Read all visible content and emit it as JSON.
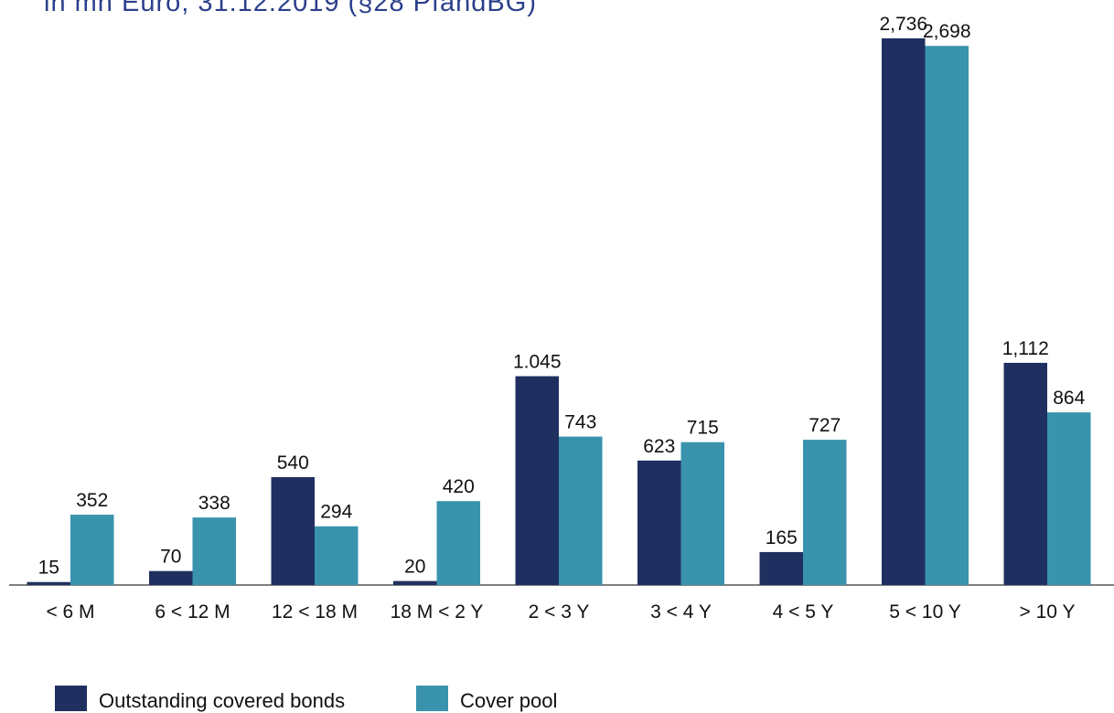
{
  "chart_data": {
    "type": "bar",
    "title": "in mn Euro, 31.12.2019 (§28 PfandBG)",
    "categories": [
      "< 6 M",
      "6 < 12 M",
      "12 < 18 M",
      "18 M < 2 Y",
      "2 < 3 Y",
      "3 < 4 Y",
      "4 < 5 Y",
      "5 < 10 Y",
      "> 10 Y"
    ],
    "series": [
      {
        "name": "Outstanding covered bonds",
        "color": "#1f3060",
        "values": [
          15,
          70,
          540,
          20,
          1045,
          623,
          165,
          2736,
          1112
        ],
        "value_labels": [
          "15",
          "70",
          "540",
          "20",
          "1.045",
          "623",
          "165",
          "2,736",
          "1,112"
        ]
      },
      {
        "name": "Cover pool",
        "color": "#3a93ad",
        "values": [
          352,
          338,
          294,
          420,
          743,
          715,
          727,
          2698,
          864
        ],
        "value_labels": [
          "352",
          "338",
          "294",
          "420",
          "743",
          "715",
          "727",
          "2,698",
          "864"
        ]
      }
    ],
    "ylim": [
      0,
      2800
    ]
  }
}
